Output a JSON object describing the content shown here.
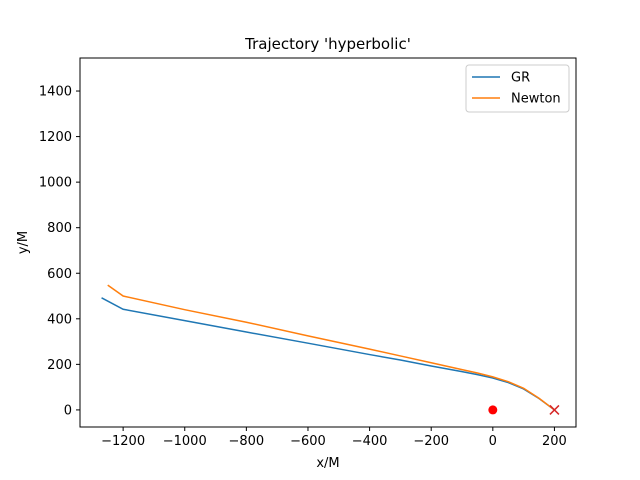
{
  "chart_data": {
    "type": "line",
    "title": "Trajectory 'hyperbolic'",
    "xlabel": "x/M",
    "ylabel": "y/M",
    "xlim": [
      -1340,
      270
    ],
    "ylim": [
      -75,
      1545
    ],
    "xticks": [
      -1200,
      -1000,
      -800,
      -600,
      -400,
      -200,
      0,
      200
    ],
    "xtick_labels": [
      "−1200",
      "−1000",
      "−800",
      "−600",
      "−400",
      "−200",
      "0",
      "200"
    ],
    "yticks": [
      0,
      200,
      400,
      600,
      800,
      1000,
      1200,
      1400
    ],
    "ytick_labels": [
      "0",
      "200",
      "400",
      "600",
      "800",
      "1000",
      "1200",
      "1400"
    ],
    "grid": false,
    "legend_position": "top-right",
    "series": [
      {
        "name": "GR",
        "color": "#1f77b4",
        "x": [
          200,
          150,
          100,
          50,
          0,
          -50,
          -100,
          -200,
          -300,
          -400,
          -600,
          -800,
          -1000,
          -1200,
          -1270
        ],
        "y": [
          0,
          50,
          92,
          120,
          140,
          155,
          168,
          193,
          219,
          243,
          293,
          342,
          392,
          442,
          492
        ]
      },
      {
        "name": "Newton",
        "color": "#ff7f0e",
        "x": [
          200,
          150,
          100,
          50,
          0,
          -50,
          -100,
          -200,
          -300,
          -400,
          -600,
          -800,
          -1000,
          -1200,
          -1250
        ],
        "y": [
          0,
          51,
          95,
          124,
          145,
          162,
          177,
          207,
          237,
          267,
          325,
          385,
          440,
          500,
          548
        ]
      }
    ],
    "markers": [
      {
        "name": "central-mass",
        "shape": "circle",
        "color": "#ff0000",
        "x": 0,
        "y": 0
      },
      {
        "name": "start-point",
        "shape": "x",
        "color": "#d62728",
        "x": 200,
        "y": 0
      }
    ]
  }
}
